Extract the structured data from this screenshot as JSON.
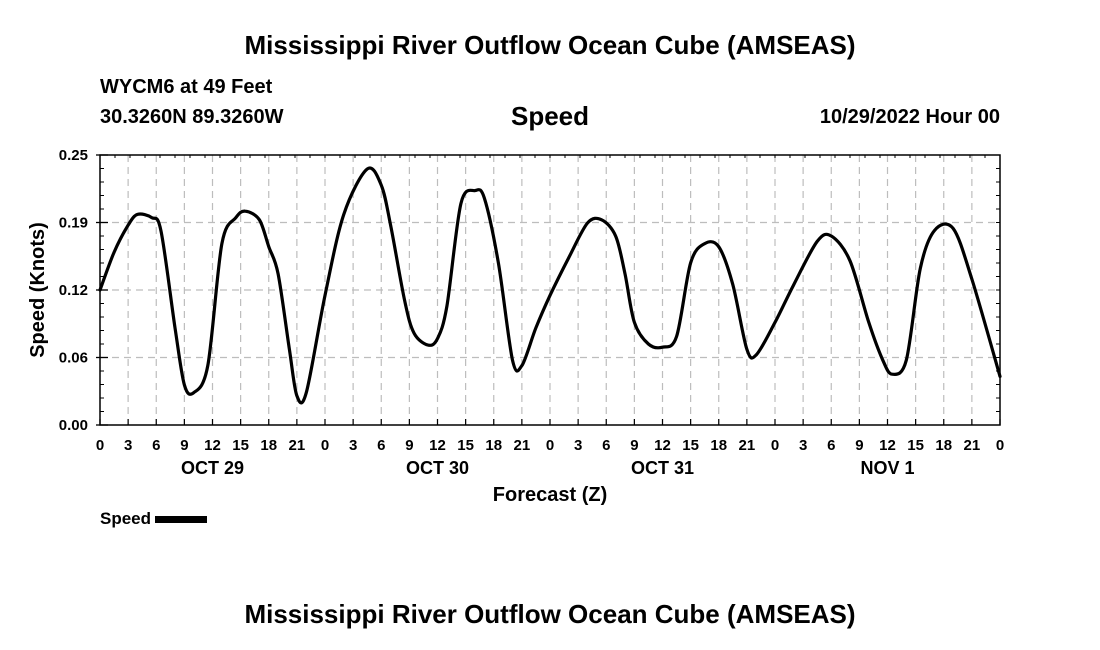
{
  "header": {
    "title": "Mississippi River Outflow Ocean Cube (AMSEAS)",
    "station": "WYCM6 at 49 Feet",
    "coords": "30.3260N  89.3260W",
    "variable": "Speed",
    "datetime": "10/29/2022 Hour 00"
  },
  "footer": {
    "title": "Mississippi River Outflow Ocean Cube (AMSEAS)"
  },
  "chart_data": {
    "type": "line",
    "xlabel": "Forecast (Z)",
    "ylabel": "Speed (Knots)",
    "xlim": [
      0,
      96
    ],
    "ylim": [
      0,
      0.25
    ],
    "y_ticks": [
      "0.00",
      "0.06",
      "0.12",
      "0.19",
      "0.25"
    ],
    "x_tick_labels": [
      "0",
      "3",
      "6",
      "9",
      "12",
      "15",
      "18",
      "21",
      "0",
      "3",
      "6",
      "9",
      "12",
      "15",
      "18",
      "21",
      "0",
      "3",
      "6",
      "9",
      "12",
      "15",
      "18",
      "21",
      "0",
      "3",
      "6",
      "9",
      "12",
      "15",
      "18",
      "21",
      "0"
    ],
    "day_labels": [
      {
        "label": "OCT 29",
        "x": 12
      },
      {
        "label": "OCT 30",
        "x": 36
      },
      {
        "label": "OCT 31",
        "x": 60
      },
      {
        "label": "NOV 1",
        "x": 84
      }
    ],
    "grid": true,
    "legend_position": "bottom-left",
    "series": [
      {
        "name": "Speed",
        "color": "#000000",
        "x": [
          0,
          1.5,
          3,
          4,
          5.5,
          6.5,
          8,
          9,
          10,
          11.5,
          13,
          14.5,
          15.5,
          17,
          18,
          19,
          20.2,
          21,
          22,
          24,
          26,
          28.5,
          30,
          31,
          32.5,
          33.5,
          35,
          36,
          37,
          38.5,
          40,
          41,
          42.5,
          44,
          45,
          46.5,
          48,
          50,
          52,
          53.5,
          55,
          56,
          57,
          58.5,
          60,
          61.5,
          63,
          64.5,
          66,
          67.5,
          69,
          70,
          72,
          74,
          76.5,
          78,
          80,
          82,
          83.5,
          84.5,
          86,
          87.5,
          89,
          91,
          93,
          96
        ],
        "y": [
          0.125,
          0.16,
          0.185,
          0.195,
          0.192,
          0.18,
          0.09,
          0.037,
          0.03,
          0.055,
          0.168,
          0.192,
          0.198,
          0.19,
          0.165,
          0.14,
          0.07,
          0.027,
          0.03,
          0.12,
          0.195,
          0.237,
          0.222,
          0.185,
          0.115,
          0.085,
          0.074,
          0.08,
          0.11,
          0.205,
          0.217,
          0.21,
          0.15,
          0.06,
          0.055,
          0.09,
          0.12,
          0.155,
          0.187,
          0.19,
          0.175,
          0.14,
          0.095,
          0.075,
          0.072,
          0.082,
          0.15,
          0.168,
          0.165,
          0.13,
          0.07,
          0.065,
          0.095,
          0.13,
          0.17,
          0.175,
          0.152,
          0.095,
          0.06,
          0.047,
          0.06,
          0.145,
          0.18,
          0.182,
          0.135,
          0.045
        ]
      }
    ]
  }
}
